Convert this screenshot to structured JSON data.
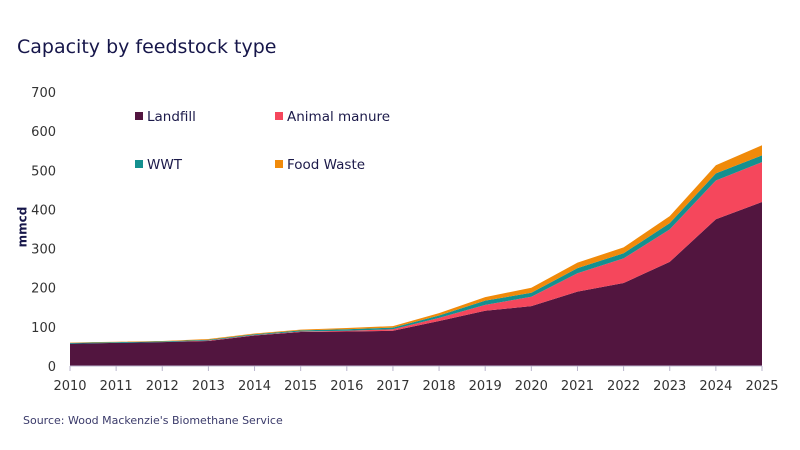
{
  "chart_data": {
    "type": "area",
    "stacked": true,
    "title": "Capacity by feedstock type",
    "xlabel": "",
    "ylabel": "mmcd",
    "ylim": [
      0,
      700
    ],
    "yticks": [
      0,
      100,
      200,
      300,
      400,
      500,
      600,
      700
    ],
    "x": [
      2010,
      2011,
      2012,
      2013,
      2014,
      2015,
      2016,
      2017,
      2018,
      2019,
      2020,
      2021,
      2022,
      2023,
      2024,
      2025
    ],
    "grid": false,
    "legend_placement": "top-left",
    "series": [
      {
        "name": "Landfill",
        "color": "#52153f",
        "values": [
          57,
          59,
          61,
          64,
          78,
          87,
          88,
          90,
          115,
          141,
          153,
          190,
          212,
          266,
          375,
          419
        ]
      },
      {
        "name": "Animal manure",
        "color": "#f5475c",
        "values": [
          0,
          0,
          0,
          1,
          1,
          1,
          2,
          4,
          8,
          15,
          24,
          47,
          63,
          83,
          99,
          102
        ]
      },
      {
        "name": "WWT",
        "color": "#14908f",
        "values": [
          2,
          2,
          2,
          2,
          2,
          3,
          4,
          4,
          6,
          11,
          10,
          13,
          13,
          16,
          18,
          17
        ]
      },
      {
        "name": "Food Waste",
        "color": "#f08a0a",
        "values": [
          1,
          1,
          1,
          2,
          2,
          2,
          3,
          4,
          6,
          9,
          13,
          14,
          15,
          18,
          21,
          26
        ]
      }
    ],
    "source": "Source: Wood Mackenzie's Biomethane Service"
  }
}
